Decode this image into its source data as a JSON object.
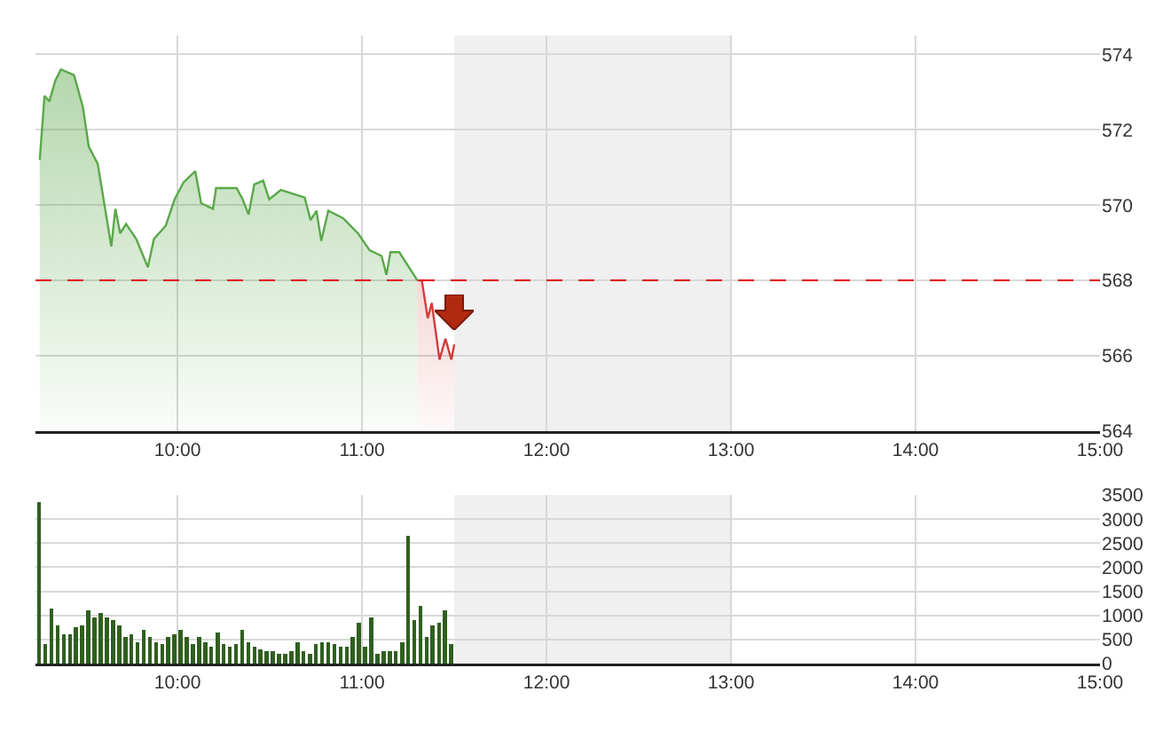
{
  "chart_data": [
    {
      "type": "area",
      "xlim": [
        9.23,
        15
      ],
      "xticks": [
        {
          "value": 10,
          "label": "10:00"
        },
        {
          "value": 11,
          "label": "11:00"
        },
        {
          "value": 12,
          "label": "12:00"
        },
        {
          "value": 13,
          "label": "13:00"
        },
        {
          "value": 14,
          "label": "14:00"
        },
        {
          "value": 15,
          "label": "15:00"
        }
      ],
      "ylim": [
        564,
        574.5
      ],
      "yticks": [
        564,
        566,
        568,
        570,
        572,
        574
      ],
      "grid": true,
      "series": [
        {
          "color": "#5aa84a",
          "x": [
            9.253,
            9.279,
            9.305,
            9.337,
            9.368,
            9.439,
            9.487,
            9.519,
            9.567,
            9.599,
            9.641,
            9.663,
            9.689,
            9.721,
            9.776,
            9.839,
            9.872,
            9.936,
            9.984,
            10.032,
            10.096,
            10.128,
            10.192,
            10.209,
            10.32,
            10.353,
            10.385,
            10.416,
            10.464,
            10.497,
            10.56,
            10.689,
            10.721,
            10.753,
            10.779,
            10.817,
            10.897,
            10.978,
            11.041,
            11.106,
            11.132,
            11.154,
            11.202,
            11.3
          ],
          "values": [
            571.2,
            572.9,
            572.75,
            573.3,
            573.6,
            573.45,
            572.6,
            571.55,
            571.1,
            570.15,
            568.9,
            569.9,
            569.25,
            569.5,
            569.1,
            568.35,
            569.1,
            569.45,
            570.15,
            570.6,
            570.9,
            570.05,
            569.9,
            570.45,
            570.45,
            570.15,
            569.75,
            570.55,
            570.65,
            570.15,
            570.4,
            570.2,
            569.6,
            569.85,
            569.05,
            569.85,
            569.65,
            569.25,
            568.8,
            568.65,
            568.15,
            568.75,
            568.75,
            568
          ]
        },
        {
          "color": "#d23c3c",
          "x": [
            11.3,
            11.324,
            11.356,
            11.378,
            11.42,
            11.452,
            11.484,
            11.5
          ],
          "values": [
            568,
            568,
            567,
            567.4,
            565.9,
            566.45,
            565.9,
            566.3
          ]
        }
      ],
      "ref_lines": [
        {
          "axis": "y",
          "value": 568,
          "color": "#e00000",
          "line_style": "dashed"
        }
      ],
      "bands": [
        {
          "axis": "x",
          "from": 11.5,
          "to": 13,
          "color": "#f0f0f0"
        }
      ]
    },
    {
      "type": "bar",
      "color": "#2f5f1f",
      "xlim": [
        9.23,
        15
      ],
      "xticks": [
        {
          "value": 10,
          "label": "10:00"
        },
        {
          "value": 11,
          "label": "11:00"
        },
        {
          "value": 12,
          "label": "12:00"
        },
        {
          "value": 13,
          "label": "13:00"
        },
        {
          "value": 14,
          "label": "14:00"
        },
        {
          "value": 15,
          "label": "15:00"
        }
      ],
      "ylim": [
        0,
        3500
      ],
      "yticks": [
        0,
        500,
        1000,
        1500,
        2000,
        2500,
        3000,
        3500
      ],
      "grid": true,
      "x": [
        9.25,
        9.283,
        9.317,
        9.35,
        9.383,
        9.417,
        9.45,
        9.483,
        9.517,
        9.55,
        9.583,
        9.617,
        9.65,
        9.683,
        9.717,
        9.75,
        9.783,
        9.817,
        9.85,
        9.883,
        9.917,
        9.95,
        9.983,
        10.017,
        10.05,
        10.083,
        10.117,
        10.15,
        10.183,
        10.217,
        10.25,
        10.283,
        10.317,
        10.35,
        10.383,
        10.417,
        10.45,
        10.483,
        10.517,
        10.55,
        10.583,
        10.617,
        10.65,
        10.683,
        10.717,
        10.75,
        10.783,
        10.817,
        10.85,
        10.883,
        10.917,
        10.95,
        10.983,
        11.017,
        11.05,
        11.083,
        11.117,
        11.15,
        11.183,
        11.217,
        11.25,
        11.283,
        11.317,
        11.35,
        11.383,
        11.417,
        11.45,
        11.483
      ],
      "values": [
        3350,
        400,
        1150,
        800,
        600,
        600,
        750,
        800,
        1100,
        950,
        1050,
        950,
        900,
        800,
        550,
        600,
        450,
        700,
        550,
        450,
        400,
        550,
        600,
        700,
        550,
        400,
        550,
        450,
        350,
        650,
        400,
        350,
        400,
        700,
        450,
        350,
        300,
        250,
        250,
        200,
        200,
        250,
        450,
        250,
        200,
        400,
        450,
        450,
        400,
        350,
        350,
        550,
        850,
        350,
        950,
        200,
        250,
        250,
        250,
        450,
        2650,
        900,
        1200,
        550,
        800,
        850,
        1100,
        400
      ],
      "bands": [
        {
          "axis": "x",
          "from": 11.5,
          "to": 13,
          "color": "#f0f0f0"
        }
      ]
    }
  ]
}
